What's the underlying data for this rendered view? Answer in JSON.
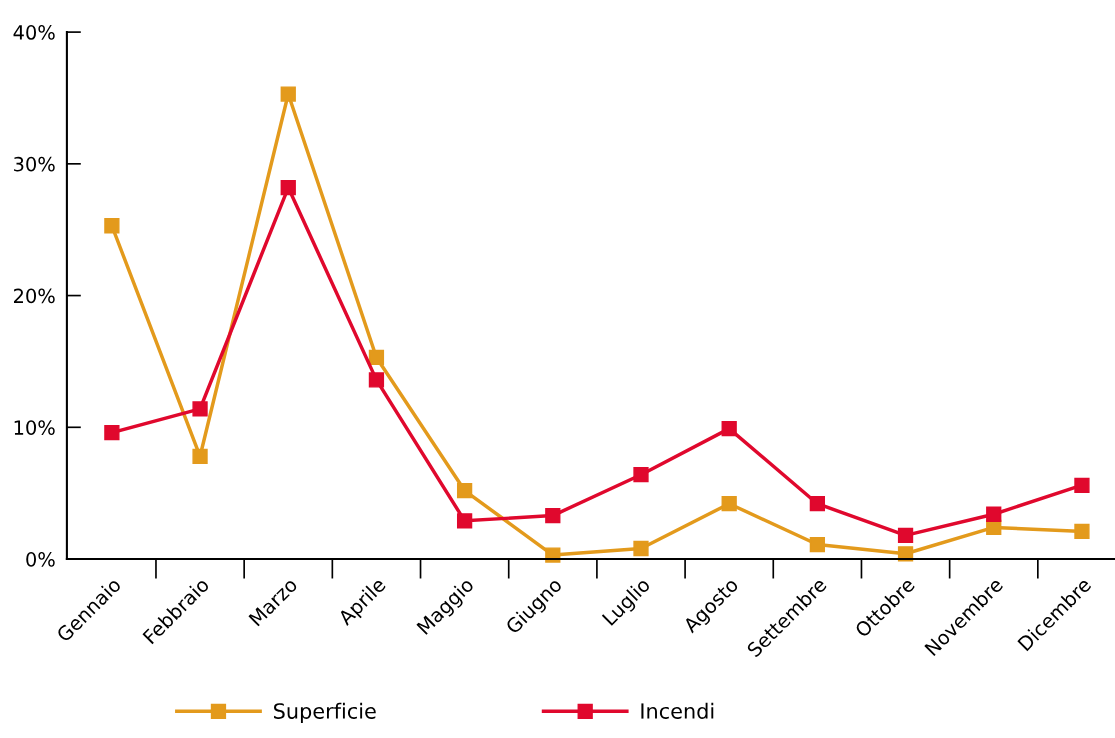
{
  "chart_data": {
    "type": "line",
    "categories": [
      "Gennaio",
      "Febbraio",
      "Marzo",
      "Aprile",
      "Maggio",
      "Giugno",
      "Luglio",
      "Agosto",
      "Settembre",
      "Ottobre",
      "Novembre",
      "Dicembre"
    ],
    "series": [
      {
        "name": "Superficie",
        "color": "#e39a1c",
        "values": [
          25.3,
          7.8,
          35.3,
          15.3,
          5.2,
          0.3,
          0.8,
          4.2,
          1.1,
          0.4,
          2.4,
          2.1
        ]
      },
      {
        "name": "Incendi",
        "color": "#e0082d",
        "values": [
          9.6,
          11.4,
          28.2,
          13.6,
          2.9,
          3.3,
          6.4,
          9.9,
          4.2,
          1.8,
          3.4,
          5.6
        ]
      }
    ],
    "ylim": [
      0,
      40
    ],
    "yticks": [
      {
        "value": 0,
        "label": "0%"
      },
      {
        "value": 10,
        "label": "10%"
      },
      {
        "value": 20,
        "label": "20%"
      },
      {
        "value": 30,
        "label": "30%"
      },
      {
        "value": 40,
        "label": "40%"
      }
    ],
    "grid": false,
    "legend": "bottom",
    "marker": "square",
    "line_style": "solid"
  }
}
